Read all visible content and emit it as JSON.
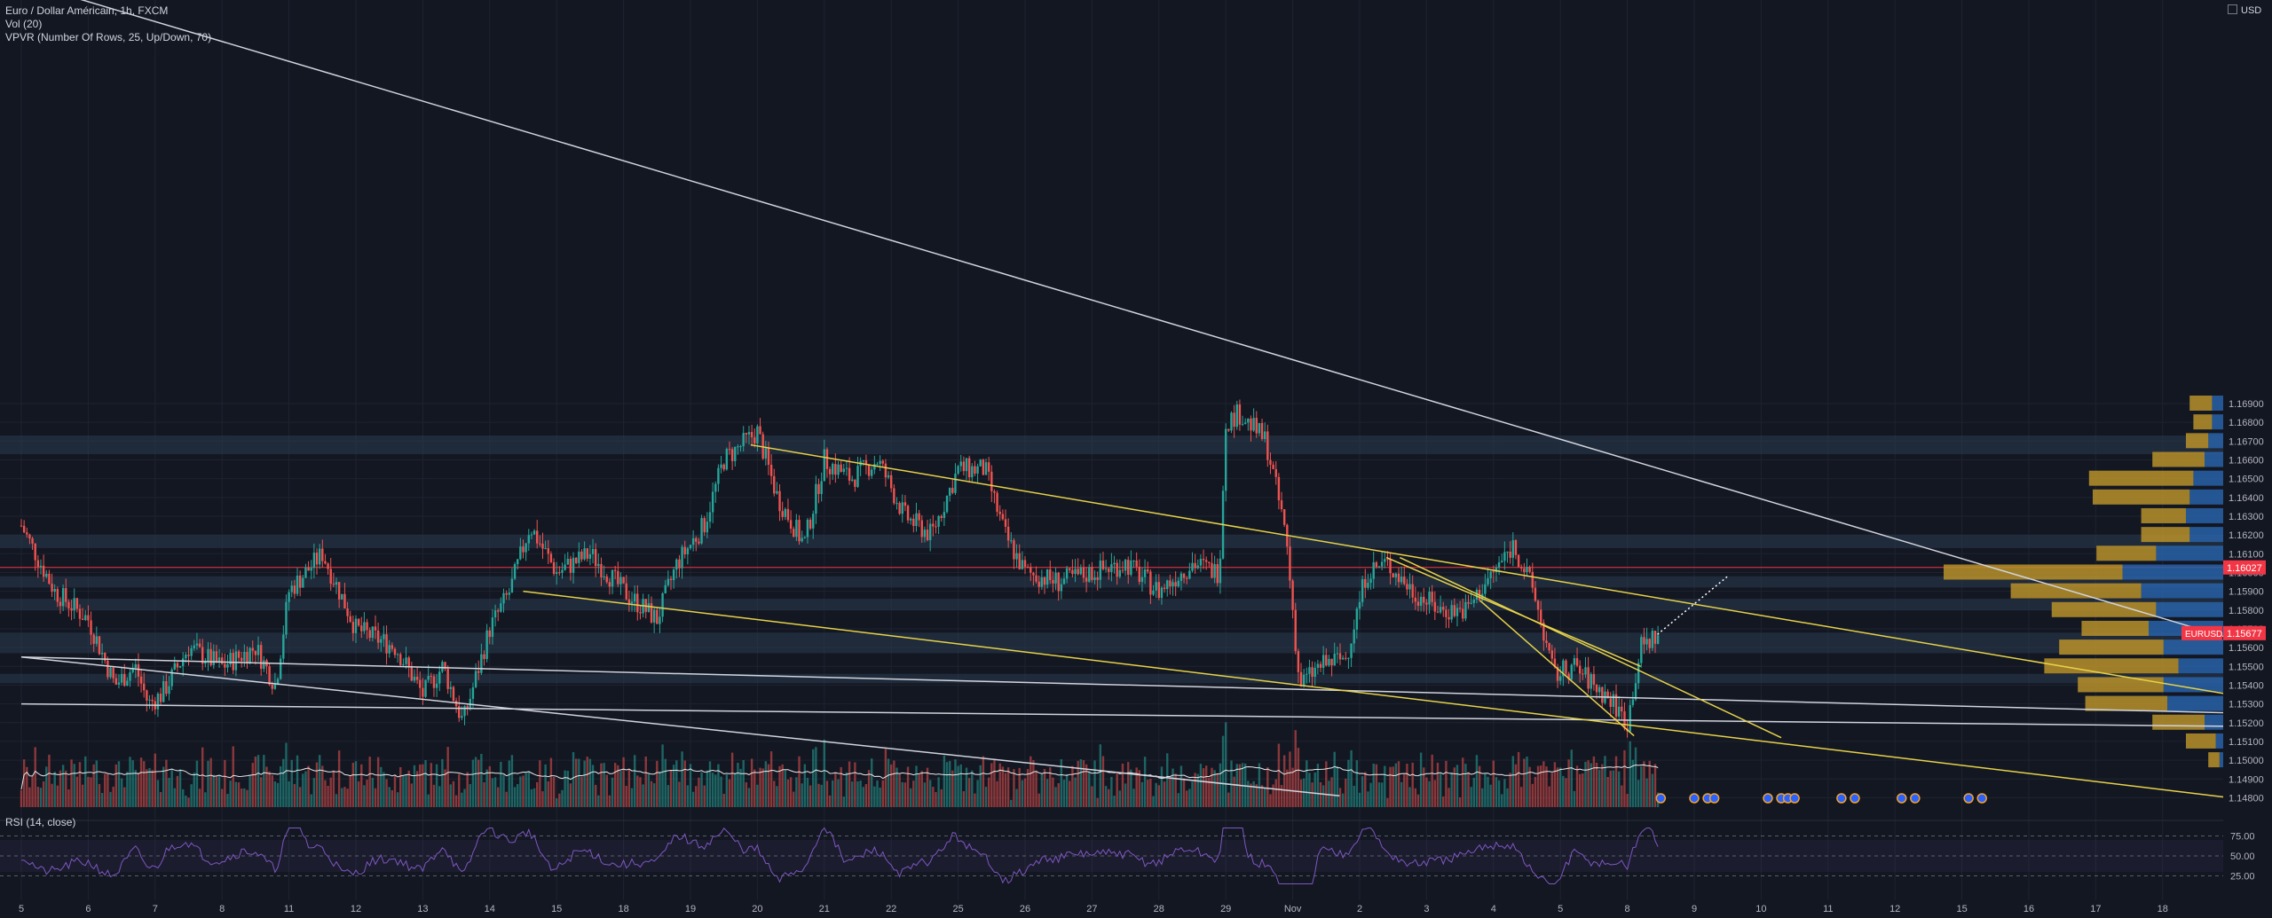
{
  "legend": {
    "symbol": "Euro / Dollar Américain, 1h, FXCM",
    "volume": "Vol (20)",
    "vpvr": "VPVR (Number Of Rows, 25, Up/Down, 70)",
    "rsi": "RSI (14, close)"
  },
  "currency_label": "USD",
  "colors": {
    "background": "#131722",
    "up": "#26a69a",
    "down": "#ef5350",
    "trendline_white": "#d1d4dc",
    "trendline_yellow": "#e6d24a",
    "zone": "#2a3d4f",
    "vp_up": "#2962a8",
    "vp_down": "#b8902a",
    "rsi_line": "#7e57c2",
    "price_line": "#f23645"
  },
  "chart_data": {
    "type": "candlestick",
    "symbol": "EURUSD",
    "timeframe": "1h",
    "price_axis": {
      "min": 1.1475,
      "max": 1.1905,
      "ticks": [
        "1.14800",
        "1.14900",
        "1.15000",
        "1.15100",
        "1.15200",
        "1.15300",
        "1.15400",
        "1.15500",
        "1.15600",
        "1.15700",
        "1.15800",
        "1.15900",
        "1.16000",
        "1.16100",
        "1.16200",
        "1.16300",
        "1.16400",
        "1.16500",
        "1.16600",
        "1.16700",
        "1.16800",
        "1.16900"
      ]
    },
    "time_axis": {
      "labels": [
        "5",
        "6",
        "7",
        "8",
        "11",
        "12",
        "13",
        "14",
        "15",
        "18",
        "19",
        "20",
        "21",
        "22",
        "25",
        "26",
        "27",
        "28",
        "29",
        "Nov",
        "2",
        "3",
        "4",
        "5",
        "8",
        "9",
        "10",
        "11",
        "12",
        "15",
        "16",
        "17",
        "18"
      ]
    },
    "current_price": {
      "label": "EURUSD",
      "value": "1.15677"
    },
    "marked_price": {
      "value": "1.16027"
    },
    "price_path": [
      [
        0,
        1.1625
      ],
      [
        0.5,
        1.159
      ],
      [
        1,
        1.1575
      ],
      [
        1.4,
        1.154
      ],
      [
        1.7,
        1.155
      ],
      [
        1.9,
        1.153
      ],
      [
        2.1,
        1.1535
      ],
      [
        2.5,
        1.156
      ],
      [
        3.0,
        1.155
      ],
      [
        3.5,
        1.156
      ],
      [
        3.8,
        1.154
      ],
      [
        4.0,
        1.159
      ],
      [
        4.5,
        1.161
      ],
      [
        5,
        1.157
      ],
      [
        5.6,
        1.156
      ],
      [
        6.0,
        1.1535
      ],
      [
        6.3,
        1.155
      ],
      [
        6.6,
        1.152
      ],
      [
        7.0,
        1.157
      ],
      [
        7.3,
        1.159
      ],
      [
        7.6,
        1.1625
      ],
      [
        8.0,
        1.16
      ],
      [
        8.5,
        1.161
      ],
      [
        9.0,
        1.159
      ],
      [
        9.5,
        1.1575
      ],
      [
        9.8,
        1.1605
      ],
      [
        10.2,
        1.1625
      ],
      [
        10.5,
        1.166
      ],
      [
        11,
        1.1675
      ],
      [
        11.3,
        1.164
      ],
      [
        11.7,
        1.1615
      ],
      [
        12.0,
        1.166
      ],
      [
        12.4,
        1.165
      ],
      [
        12.8,
        1.166
      ],
      [
        13.2,
        1.163
      ],
      [
        13.6,
        1.162
      ],
      [
        14.0,
        1.1655
      ],
      [
        14.4,
        1.1655
      ],
      [
        14.7,
        1.162
      ],
      [
        15.0,
        1.16
      ],
      [
        15.5,
        1.1595
      ],
      [
        16.0,
        1.16
      ],
      [
        16.5,
        1.1605
      ],
      [
        17.0,
        1.159
      ],
      [
        17.5,
        1.1605
      ],
      [
        17.9,
        1.16
      ],
      [
        18.0,
        1.168
      ],
      [
        18.2,
        1.1685
      ],
      [
        18.6,
        1.167
      ],
      [
        18.9,
        1.162
      ],
      [
        19.1,
        1.154
      ],
      [
        19.4,
        1.155
      ],
      [
        19.8,
        1.1555
      ],
      [
        20.1,
        1.16
      ],
      [
        20.4,
        1.1605
      ],
      [
        20.8,
        1.159
      ],
      [
        21.2,
        1.158
      ],
      [
        21.6,
        1.158
      ],
      [
        22.0,
        1.16
      ],
      [
        22.3,
        1.1615
      ],
      [
        22.6,
        1.159
      ],
      [
        22.9,
        1.1545
      ],
      [
        23.2,
        1.155
      ],
      [
        23.5,
        1.154
      ],
      [
        23.8,
        1.153
      ],
      [
        24.0,
        1.152
      ],
      [
        24.2,
        1.156
      ],
      [
        24.45,
        1.1567
      ]
    ],
    "rsi": {
      "levels": [
        75.0,
        50.0,
        25.0
      ],
      "tick_labels": [
        "75.00",
        "50.00",
        "25.00"
      ]
    },
    "trendlines": {
      "white": [
        [
          [
            -0.5,
            1.192
          ],
          [
            33.0,
            1.1565
          ]
        ],
        [
          [
            0,
            1.1555
          ],
          [
            33.2,
            1.1525
          ]
        ],
        [
          [
            0,
            1.153
          ],
          [
            33.2,
            1.1518
          ]
        ],
        [
          [
            0,
            1.1555
          ],
          [
            19.7,
            1.1481
          ]
        ]
      ],
      "yellow": [
        [
          [
            10.9,
            1.1668
          ],
          [
            33.0,
            1.1535
          ]
        ],
        [
          [
            7.5,
            1.159
          ],
          [
            33.0,
            1.148
          ]
        ],
        [
          [
            20.4,
            1.1608
          ],
          [
            24.2,
            1.155
          ]
        ],
        [
          [
            20.6,
            1.1608
          ],
          [
            26.3,
            1.1512
          ]
        ],
        [
          [
            21.8,
            1.1585
          ],
          [
            24.1,
            1.1513
          ]
        ]
      ]
    },
    "zones": [
      [
        1.1663,
        1.1673
      ],
      [
        1.1613,
        1.162
      ],
      [
        1.1592,
        1.1598
      ],
      [
        1.158,
        1.1586
      ],
      [
        1.1557,
        1.1568
      ],
      [
        1.1541,
        1.1546
      ]
    ],
    "volume_profile": [
      {
        "price": 1.169,
        "up": 3,
        "down": 6
      },
      {
        "price": 1.168,
        "up": 3,
        "down": 5
      },
      {
        "price": 1.167,
        "up": 4,
        "down": 6
      },
      {
        "price": 1.166,
        "up": 5,
        "down": 14
      },
      {
        "price": 1.165,
        "up": 8,
        "down": 28
      },
      {
        "price": 1.164,
        "up": 9,
        "down": 26
      },
      {
        "price": 1.163,
        "up": 10,
        "down": 12
      },
      {
        "price": 1.162,
        "up": 9,
        "down": 13
      },
      {
        "price": 1.161,
        "up": 18,
        "down": 16
      },
      {
        "price": 1.16,
        "up": 27,
        "down": 48
      },
      {
        "price": 1.159,
        "up": 22,
        "down": 35
      },
      {
        "price": 1.158,
        "up": 18,
        "down": 28
      },
      {
        "price": 1.157,
        "up": 20,
        "down": 18
      },
      {
        "price": 1.156,
        "up": 16,
        "down": 28
      },
      {
        "price": 1.155,
        "up": 12,
        "down": 36
      },
      {
        "price": 1.154,
        "up": 16,
        "down": 23
      },
      {
        "price": 1.153,
        "up": 15,
        "down": 22
      },
      {
        "price": 1.152,
        "up": 5,
        "down": 14
      },
      {
        "price": 1.151,
        "up": 2,
        "down": 8
      },
      {
        "price": 1.15,
        "up": 1,
        "down": 3
      }
    ]
  }
}
